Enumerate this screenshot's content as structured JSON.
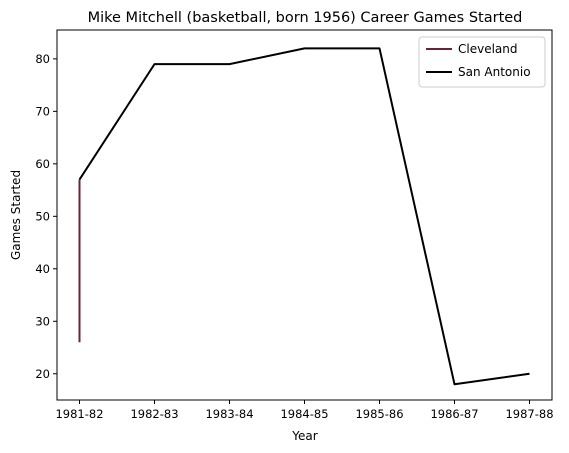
{
  "chart_data": {
    "type": "line",
    "title": "Mike Mitchell (basketball, born 1956) Career Games Started",
    "xlabel": "Year",
    "ylabel": "Games Started",
    "categories": [
      "1981-82",
      "1982-83",
      "1983-84",
      "1984-85",
      "1985-86",
      "1986-87",
      "1987-88"
    ],
    "yticks": [
      20,
      30,
      40,
      50,
      60,
      70,
      80
    ],
    "ylim": [
      15,
      85.5
    ],
    "grid": false,
    "legend_position": "top-right",
    "series": [
      {
        "name": "Cleveland",
        "color": "#6b2336",
        "points": [
          {
            "x": "1981-82",
            "y": 26
          },
          {
            "x": "1981-82",
            "y": 57
          }
        ]
      },
      {
        "name": "San Antonio",
        "color": "#000000",
        "points": [
          {
            "x": "1981-82",
            "y": 57
          },
          {
            "x": "1982-83",
            "y": 79
          },
          {
            "x": "1983-84",
            "y": 79
          },
          {
            "x": "1984-85",
            "y": 82
          },
          {
            "x": "1985-86",
            "y": 82
          },
          {
            "x": "1986-87",
            "y": 18
          },
          {
            "x": "1987-88",
            "y": 20
          }
        ]
      }
    ]
  }
}
